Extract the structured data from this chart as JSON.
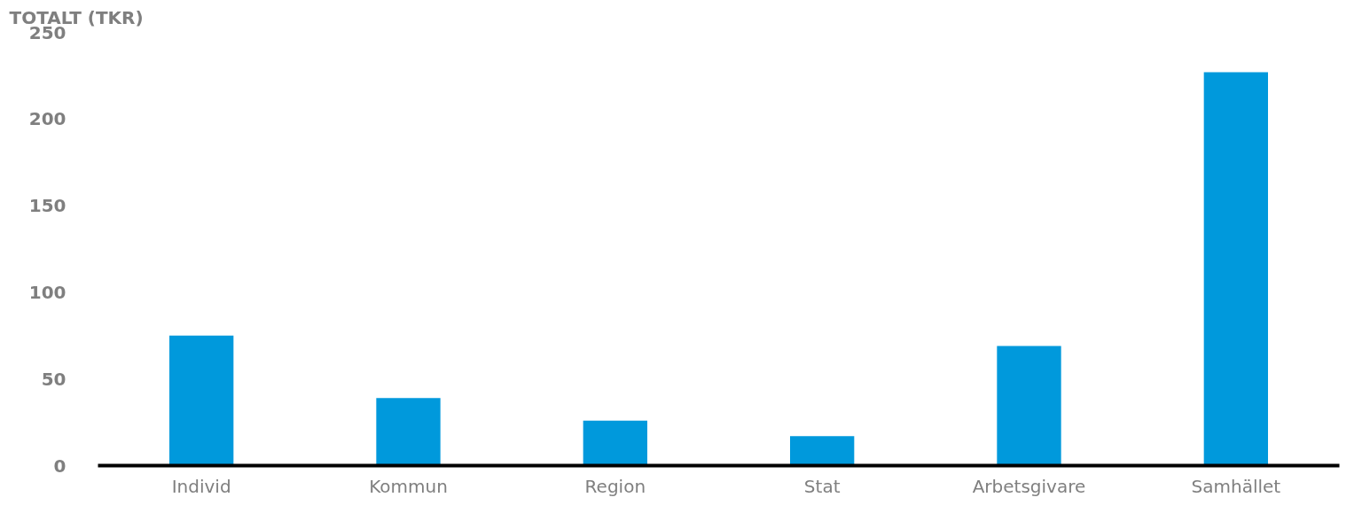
{
  "chart_data": {
    "type": "bar",
    "ylabel": "TOTALT (TKR)",
    "categories": [
      "Individ",
      "Kommun",
      "Region",
      "Stat",
      "Arbetsgivare",
      "Samhället"
    ],
    "values": [
      75,
      39,
      26,
      17,
      69,
      227
    ],
    "color": "#0099dc",
    "ylim": [
      0,
      250
    ],
    "yticks": [
      0,
      50,
      100,
      150,
      200,
      250
    ],
    "grid": false
  }
}
